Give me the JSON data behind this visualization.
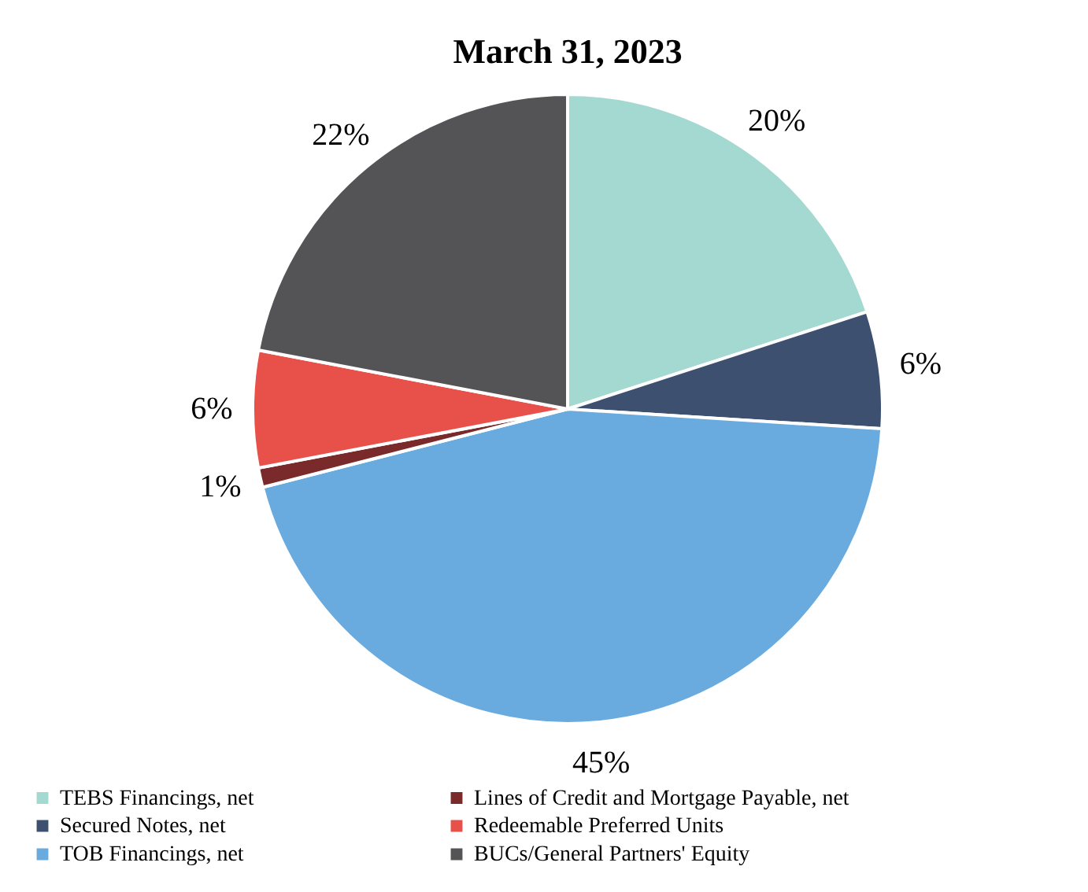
{
  "chart_data": {
    "type": "pie",
    "title": "March 31, 2023",
    "categories": [
      "TEBS Financings, net",
      "Secured Notes, net",
      "TOB Financings, net",
      "Lines of Credit and Mortgage Payable, net",
      "Redeemable Preferred Units",
      "BUCs/General Partners' Equity"
    ],
    "values": [
      20,
      6,
      45,
      1,
      6,
      22
    ],
    "colors": [
      "#a3d9d0",
      "#3d5070",
      "#6aabdf",
      "#7a2a2a",
      "#e8504a",
      "#545457"
    ],
    "value_labels": [
      "20%",
      "6%",
      "45%",
      "1%",
      "6%",
      "22%"
    ],
    "legend": "bottom"
  }
}
